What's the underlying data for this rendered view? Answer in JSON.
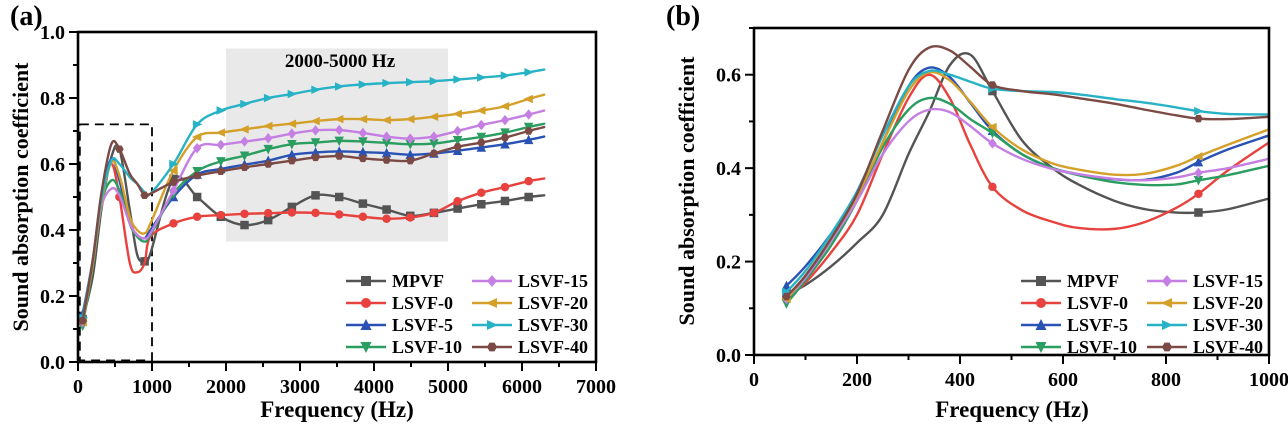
{
  "figure_background": "#ffffff",
  "chart_data": [
    {
      "type": "line",
      "panel_label": "(a)",
      "x_axis": {
        "label": "Frequency (Hz)",
        "min": 0,
        "max": 7000,
        "major_ticks": [
          0,
          1000,
          2000,
          3000,
          4000,
          5000,
          6000,
          7000
        ],
        "tick_labels": [
          "0",
          "1000",
          "2000",
          "3000",
          "4000",
          "5000",
          "6000",
          "7000"
        ],
        "minor_step": 500
      },
      "y_axis": {
        "label": "Sound absorption coefficient",
        "min": 0.0,
        "max": 1.0,
        "major_ticks": [
          0.0,
          0.2,
          0.4,
          0.6,
          0.8,
          1.0
        ],
        "tick_labels": [
          "0.0",
          "0.2",
          "0.4",
          "0.6",
          "0.8",
          "1.0"
        ],
        "minor_step": 0.1
      },
      "grid": false,
      "legend_position": "inside-bottom-right",
      "x": [
        63,
        200,
        315,
        450,
        560,
        700,
        800,
        900,
        980,
        1290,
        1610,
        1930,
        2250,
        2570,
        2890,
        3210,
        3530,
        3850,
        4170,
        4490,
        4810,
        5130,
        5450,
        5770,
        6090,
        6300
      ],
      "marker_xs": [
        63,
        1290,
        1610,
        1930,
        2250,
        2570,
        2890,
        3210,
        3530,
        3850,
        4170,
        4490,
        4810,
        5130,
        5450,
        5770,
        6090
      ],
      "annotations": {
        "shaded_region": {
          "label": "2000-5000 Hz",
          "x_from": 2000,
          "x_to": 5000,
          "y_from": 0.365,
          "y_to": 0.95,
          "fill": "#e9e9e9"
        },
        "dashed_box": {
          "x_from": 25,
          "x_to": 1000,
          "y_from": 0.005,
          "y_to": 0.72
        }
      },
      "series": [
        {
          "name": "MPVF",
          "color": "#545454",
          "marker": "square",
          "extra_marker_xs": [
            900
          ],
          "y": [
            0.13,
            0.26,
            0.46,
            0.62,
            0.645,
            0.46,
            0.325,
            0.305,
            0.33,
            0.555,
            0.5,
            0.44,
            0.415,
            0.43,
            0.47,
            0.505,
            0.5,
            0.48,
            0.462,
            0.443,
            0.452,
            0.465,
            0.478,
            0.488,
            0.5,
            0.505
          ]
        },
        {
          "name": "LSVF-0",
          "color": "#e8423e",
          "marker": "circle",
          "extra_marker_xs": [
            560
          ],
          "y": [
            0.12,
            0.29,
            0.5,
            0.6,
            0.5,
            0.3,
            0.272,
            0.3,
            0.38,
            0.42,
            0.44,
            0.445,
            0.449,
            0.451,
            0.453,
            0.452,
            0.447,
            0.44,
            0.434,
            0.438,
            0.452,
            0.487,
            0.513,
            0.53,
            0.548,
            0.556
          ]
        },
        {
          "name": "LSVF-5",
          "color": "#2a52b4",
          "marker": "triangle-up",
          "extra_marker_xs": [],
          "y": [
            0.145,
            0.31,
            0.5,
            0.615,
            0.55,
            0.42,
            0.385,
            0.375,
            0.4,
            0.5,
            0.568,
            0.585,
            0.598,
            0.61,
            0.628,
            0.635,
            0.638,
            0.636,
            0.633,
            0.628,
            0.632,
            0.64,
            0.65,
            0.66,
            0.673,
            0.683
          ]
        },
        {
          "name": "LSVF-10",
          "color": "#2a9d61",
          "marker": "triangle-down",
          "extra_marker_xs": [],
          "y": [
            0.11,
            0.29,
            0.48,
            0.55,
            0.52,
            0.42,
            0.38,
            0.365,
            0.385,
            0.51,
            0.578,
            0.608,
            0.625,
            0.645,
            0.66,
            0.665,
            0.67,
            0.668,
            0.664,
            0.66,
            0.662,
            0.672,
            0.682,
            0.695,
            0.712,
            0.722
          ]
        },
        {
          "name": "LSVF-15",
          "color": "#c57fe3",
          "marker": "diamond",
          "extra_marker_xs": [],
          "y": [
            0.12,
            0.3,
            0.47,
            0.525,
            0.505,
            0.42,
            0.385,
            0.375,
            0.39,
            0.52,
            0.648,
            0.658,
            0.668,
            0.678,
            0.692,
            0.702,
            0.703,
            0.694,
            0.683,
            0.677,
            0.683,
            0.7,
            0.718,
            0.733,
            0.75,
            0.762
          ]
        },
        {
          "name": "LSVF-20",
          "color": "#d5a02a",
          "marker": "triangle-left",
          "extra_marker_xs": [],
          "y": [
            0.12,
            0.3,
            0.48,
            0.605,
            0.565,
            0.44,
            0.4,
            0.39,
            0.42,
            0.58,
            0.682,
            0.695,
            0.705,
            0.715,
            0.722,
            0.73,
            0.736,
            0.736,
            0.733,
            0.736,
            0.743,
            0.752,
            0.762,
            0.775,
            0.797,
            0.81
          ]
        },
        {
          "name": "LSVF-30",
          "color": "#27b2c6",
          "marker": "triangle-right",
          "extra_marker_xs": [],
          "y": [
            0.135,
            0.31,
            0.49,
            0.61,
            0.6,
            0.56,
            0.54,
            0.515,
            0.51,
            0.6,
            0.72,
            0.762,
            0.782,
            0.8,
            0.812,
            0.825,
            0.835,
            0.841,
            0.845,
            0.848,
            0.851,
            0.856,
            0.862,
            0.868,
            0.878,
            0.886
          ]
        },
        {
          "name": "LSVF-40",
          "color": "#7b4a44",
          "marker": "hexagon",
          "extra_marker_xs": [
            560,
            900
          ],
          "y": [
            0.125,
            0.31,
            0.51,
            0.66,
            0.645,
            0.57,
            0.54,
            0.505,
            0.51,
            0.545,
            0.565,
            0.578,
            0.59,
            0.6,
            0.61,
            0.62,
            0.624,
            0.617,
            0.612,
            0.61,
            0.632,
            0.652,
            0.665,
            0.68,
            0.7,
            0.712
          ]
        }
      ]
    },
    {
      "type": "line",
      "panel_label": "(b)",
      "x_axis": {
        "label": "Frequency (Hz)",
        "min": 0,
        "max": 1000,
        "major_ticks": [
          0,
          200,
          400,
          600,
          800,
          1000
        ],
        "tick_labels": [
          "0",
          "200",
          "400",
          "600",
          "800",
          "1000"
        ],
        "minor_step": 100
      },
      "y_axis": {
        "label": "Sound absorption coefficient",
        "min": 0.0,
        "max": 0.7,
        "major_ticks": [
          0.0,
          0.2,
          0.4,
          0.6
        ],
        "tick_labels": [
          "0.0",
          "0.2",
          "0.4",
          "0.6"
        ],
        "minor_step": 0.1
      },
      "grid": false,
      "legend_position": "inside-bottom-right",
      "x": [
        63,
        100,
        150,
        200,
        250,
        300,
        340,
        380,
        420,
        463,
        520,
        580,
        630,
        700,
        760,
        820,
        863,
        920,
        1000
      ],
      "marker_xs": [
        63,
        463,
        863
      ],
      "annotations": null,
      "series": [
        {
          "name": "MPVF",
          "color": "#545454",
          "marker": "square",
          "extra_marker_xs": [],
          "y": [
            0.13,
            0.15,
            0.19,
            0.24,
            0.3,
            0.43,
            0.52,
            0.62,
            0.643,
            0.565,
            0.46,
            0.4,
            0.365,
            0.33,
            0.312,
            0.305,
            0.305,
            0.312,
            0.335
          ]
        },
        {
          "name": "LSVF-0",
          "color": "#e8423e",
          "marker": "circle",
          "extra_marker_xs": [],
          "y": [
            0.12,
            0.155,
            0.22,
            0.3,
            0.43,
            0.55,
            0.6,
            0.55,
            0.45,
            0.36,
            0.31,
            0.285,
            0.272,
            0.27,
            0.285,
            0.315,
            0.345,
            0.395,
            0.455
          ]
        },
        {
          "name": "LSVF-5",
          "color": "#2a52b4",
          "marker": "triangle-up",
          "extra_marker_xs": [],
          "y": [
            0.148,
            0.19,
            0.26,
            0.34,
            0.455,
            0.575,
            0.615,
            0.595,
            0.54,
            0.48,
            0.43,
            0.4,
            0.387,
            0.376,
            0.375,
            0.39,
            0.413,
            0.44,
            0.47
          ]
        },
        {
          "name": "LSVF-10",
          "color": "#2a9d61",
          "marker": "triangle-down",
          "extra_marker_xs": [],
          "y": [
            0.11,
            0.16,
            0.235,
            0.33,
            0.445,
            0.525,
            0.55,
            0.538,
            0.505,
            0.475,
            0.43,
            0.4,
            0.385,
            0.37,
            0.364,
            0.365,
            0.374,
            0.385,
            0.405
          ]
        },
        {
          "name": "LSVF-15",
          "color": "#c57fe3",
          "marker": "diamond",
          "extra_marker_xs": [],
          "y": [
            0.12,
            0.165,
            0.245,
            0.33,
            0.43,
            0.5,
            0.525,
            0.52,
            0.49,
            0.453,
            0.42,
            0.398,
            0.387,
            0.377,
            0.374,
            0.38,
            0.39,
            0.4,
            0.42
          ]
        },
        {
          "name": "LSVF-20",
          "color": "#d5a02a",
          "marker": "triangle-left",
          "extra_marker_xs": [],
          "y": [
            0.12,
            0.17,
            0.25,
            0.34,
            0.455,
            0.565,
            0.605,
            0.588,
            0.542,
            0.488,
            0.44,
            0.41,
            0.397,
            0.386,
            0.388,
            0.405,
            0.425,
            0.45,
            0.483
          ]
        },
        {
          "name": "LSVF-30",
          "color": "#27b2c6",
          "marker": "triangle-right",
          "extra_marker_xs": [],
          "y": [
            0.135,
            0.18,
            0.26,
            0.35,
            0.47,
            0.575,
            0.608,
            0.6,
            0.585,
            0.57,
            0.565,
            0.563,
            0.558,
            0.548,
            0.54,
            0.53,
            0.522,
            0.516,
            0.515
          ]
        },
        {
          "name": "LSVF-40",
          "color": "#7b4a44",
          "marker": "hexagon",
          "extra_marker_xs": [],
          "y": [
            0.125,
            0.17,
            0.25,
            0.345,
            0.48,
            0.61,
            0.658,
            0.652,
            0.617,
            0.578,
            0.565,
            0.558,
            0.55,
            0.538,
            0.525,
            0.513,
            0.506,
            0.505,
            0.51
          ]
        }
      ]
    }
  ]
}
